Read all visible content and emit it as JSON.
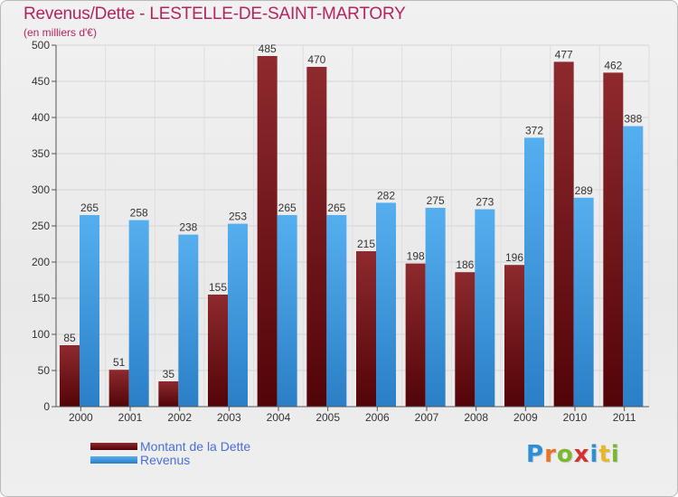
{
  "header": {
    "title": "Revenus/Dette - LESTELLE-DE-SAINT-MARTORY",
    "subtitle": "(en milliers d'€)"
  },
  "legend": [
    {
      "label": "Montant de la Dette",
      "color": "#7a1a1e"
    },
    {
      "label": "Revenus",
      "color": "#4aa3e8"
    }
  ],
  "logo": {
    "text": "Proxiti",
    "letter_colors": [
      "#2e8fd6",
      "#e8732a",
      "#7cb82f",
      "#d0342c",
      "#2e8fd6",
      "#e8b62a",
      "#7cb82f"
    ]
  },
  "chart_data": {
    "type": "bar",
    "categories": [
      "2000",
      "2001",
      "2002",
      "2003",
      "2004",
      "2005",
      "2006",
      "2007",
      "2008",
      "2009",
      "2010",
      "2011"
    ],
    "series": [
      {
        "name": "Montant de la Dette",
        "values": [
          85,
          51,
          35,
          155,
          485,
          470,
          215,
          198,
          186,
          196,
          477,
          462
        ],
        "color": "#7a1a1e"
      },
      {
        "name": "Revenus",
        "values": [
          265,
          258,
          238,
          253,
          265,
          265,
          282,
          275,
          273,
          372,
          289,
          388
        ],
        "color": "#4aa3e8"
      }
    ],
    "ylim": [
      0,
      500
    ],
    "yticks": [
      0,
      50,
      100,
      150,
      200,
      250,
      300,
      350,
      400,
      450,
      500
    ],
    "grid": true,
    "legend_position": "bottom-left"
  }
}
